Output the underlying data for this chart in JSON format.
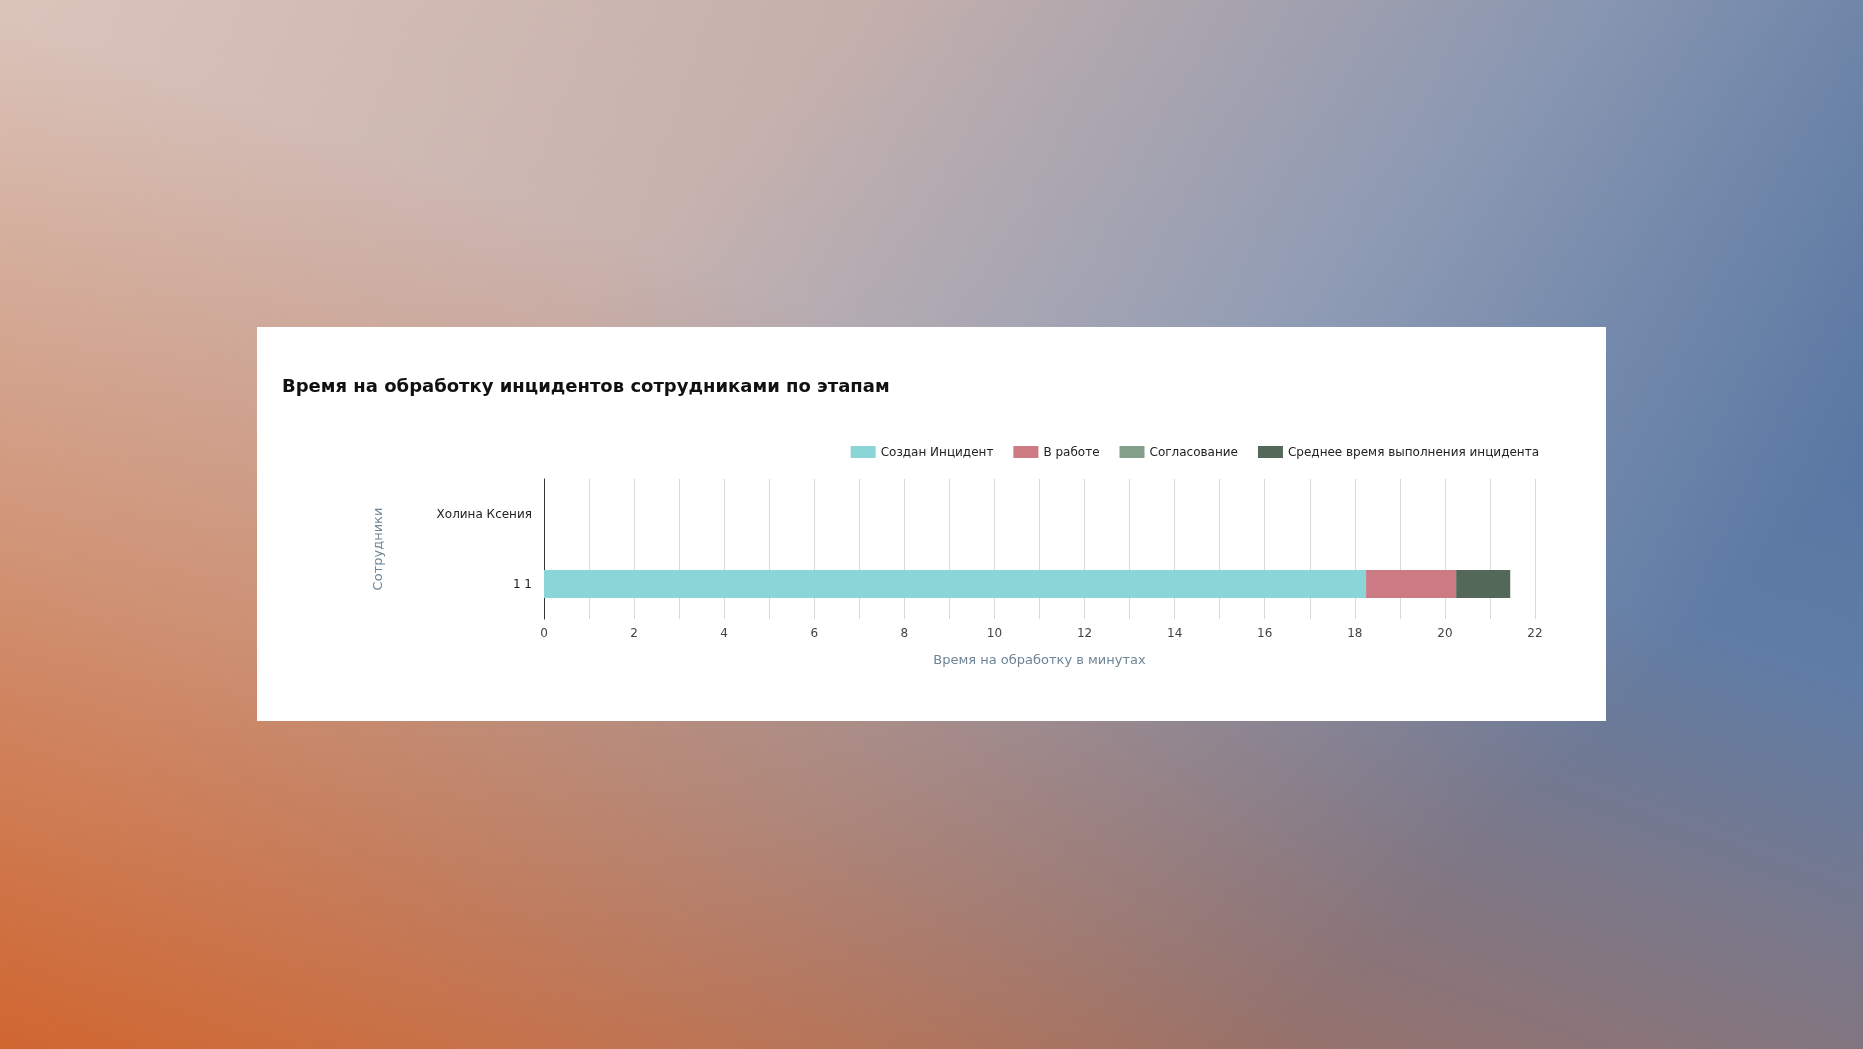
{
  "chart_data": {
    "type": "bar",
    "orientation": "horizontal",
    "stacked": true,
    "title": "Время на обработку инцидентов сотрудниками по этапам",
    "xlabel": "Время на обработку в минутах",
    "ylabel": "Сотрудники",
    "categories": [
      "Холина Ксения",
      "1 1"
    ],
    "series": [
      {
        "name": "Создан Инцидент",
        "color": "#8ad6d6",
        "values": [
          null,
          18.25
        ]
      },
      {
        "name": "В работе",
        "color": "#cc7a84",
        "values": [
          null,
          2.0
        ]
      },
      {
        "name": "Согласование",
        "color": "#85a08a",
        "values": [
          null,
          0
        ]
      },
      {
        "name": "Среднее время выполнения инцидента",
        "color": "#536858",
        "values": [
          null,
          1.2
        ]
      }
    ],
    "xlim": [
      0,
      22
    ],
    "xticks": [
      0,
      {
        "value": 1,
        "label": null
      },
      2,
      {
        "value": 3,
        "label": null
      },
      4,
      {
        "value": 5,
        "label": null
      },
      6,
      {
        "value": 7,
        "label": null
      },
      8,
      {
        "value": 9,
        "label": null
      },
      10,
      {
        "value": 11,
        "label": null
      },
      12,
      {
        "value": 13,
        "label": null
      },
      14,
      {
        "value": 15,
        "label": null
      },
      16,
      {
        "value": 17,
        "label": null
      },
      18,
      {
        "value": 19,
        "label": null
      },
      20,
      {
        "value": 21,
        "label": null
      },
      22
    ],
    "grid": "x",
    "legend": "top right"
  }
}
